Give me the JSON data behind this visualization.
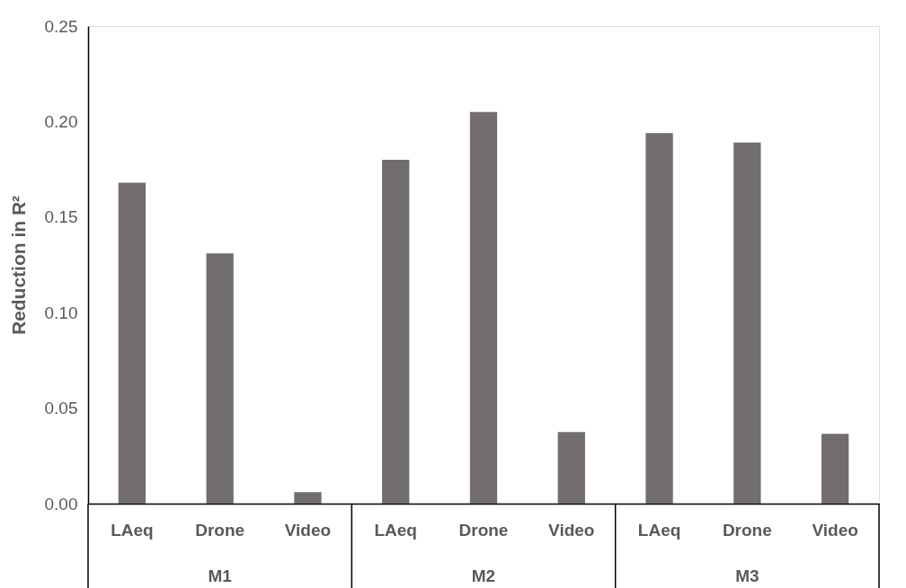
{
  "chart_data": {
    "type": "bar",
    "ylabel": "Reduction in R²",
    "categories": [
      "LAeq",
      "Drone",
      "Video",
      "LAeq",
      "Drone",
      "Video",
      "LAeq",
      "Drone",
      "Video"
    ],
    "series": [
      {
        "color": "#726e6d",
        "values": [
          0.168,
          0.131,
          0.006,
          0.18,
          0.205,
          0.0375,
          0.194,
          0.189,
          0.0365
        ]
      }
    ],
    "annotations": [
      "M1",
      "M2",
      "M3"
    ],
    "ylim": [
      0,
      0.25
    ],
    "yticks": [
      {
        "value": 0,
        "label": "0.00"
      },
      {
        "value": 0.05,
        "label": "0.05"
      },
      {
        "value": 0.1,
        "label": "0.10"
      },
      {
        "value": 0.15,
        "label": "0.15"
      },
      {
        "value": 0.2,
        "label": "0.20"
      },
      {
        "value": 0.25,
        "label": "0.25"
      }
    ],
    "grid": false,
    "legend": false
  }
}
